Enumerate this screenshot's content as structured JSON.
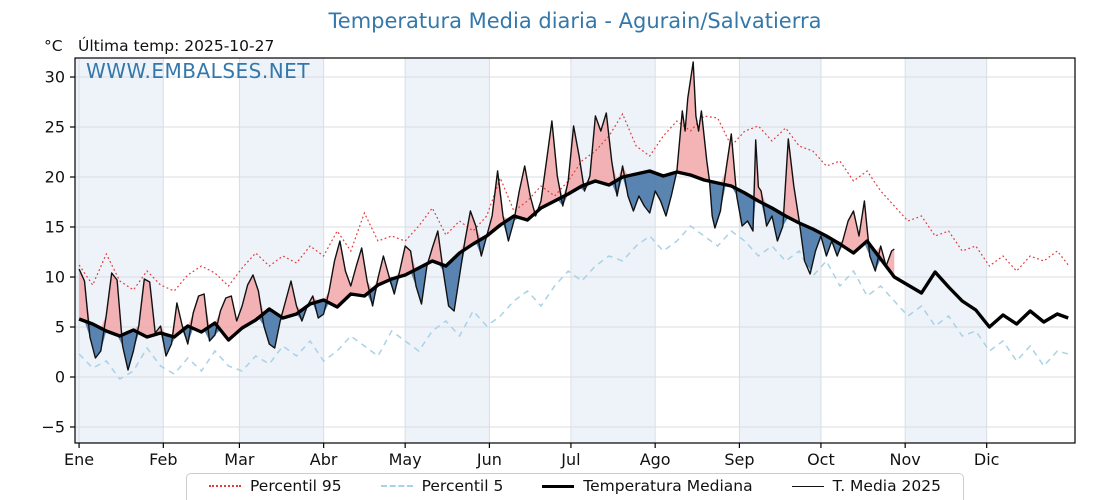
{
  "header": {
    "title": "Temperatura Media diaria - Agurain/Salvatierra",
    "unit_label": "°C",
    "last_temp_label": "Última temp: 2025-10-27",
    "watermark": "WWW.EMBALSES.NET"
  },
  "legend": {
    "items": [
      {
        "label": "Percentil 95"
      },
      {
        "label": "Percentil 5"
      },
      {
        "label": "Temperatura Mediana"
      },
      {
        "label": "T. Media 2025"
      }
    ]
  },
  "colors": {
    "accent_blue": "#3478ab",
    "p95_line": "#e23b3b",
    "p5_line": "#a9d2e6",
    "median_line": "#000000",
    "t2025_line": "#111111",
    "fill_above": "#f2a6a8",
    "fill_below": "#4474a6",
    "band_tint": "#eef2f9",
    "band_white": "#ffffff",
    "grid": "#d9dee4",
    "frame": "#000000",
    "text": "#111111"
  },
  "chart_data": {
    "type": "line",
    "title": "Temperatura Media diaria - Agurain/Salvatierra",
    "xlabel": "",
    "ylabel": "°C",
    "grid": true,
    "legend_position": "bottom",
    "ylim": [
      -6.6,
      31.9
    ],
    "xlim_days": [
      -1.5,
      366.5
    ],
    "yticks": [
      -5,
      0,
      5,
      10,
      15,
      20,
      25,
      30
    ],
    "ytick_labels": [
      "−5",
      "0",
      "5",
      "10",
      "15",
      "20",
      "25",
      "30"
    ],
    "x_tick_labels": [
      "Ene",
      "Feb",
      "Mar",
      "Abr",
      "May",
      "Jun",
      "Jul",
      "Ago",
      "Sep",
      "Oct",
      "Nov",
      "Dic"
    ],
    "month_start_days": [
      0,
      31,
      59,
      90,
      120,
      151,
      181,
      212,
      243,
      273,
      304,
      334
    ],
    "common_days": [
      0,
      5,
      10,
      15,
      20,
      25,
      30,
      35,
      40,
      45,
      50,
      55,
      60,
      65,
      70,
      75,
      80,
      85,
      90,
      95,
      100,
      105,
      110,
      115,
      120,
      125,
      130,
      135,
      140,
      145,
      150,
      155,
      160,
      165,
      170,
      175,
      180,
      185,
      190,
      195,
      200,
      205,
      210,
      215,
      220,
      225,
      230,
      235,
      240,
      245,
      250,
      255,
      260,
      265,
      270,
      275,
      280,
      285,
      290,
      295,
      300,
      305,
      310,
      315,
      320,
      325,
      330,
      335,
      340,
      345,
      350,
      355,
      360,
      364
    ],
    "series": [
      {
        "name": "Percentil 95",
        "role": "p95",
        "days": "common",
        "values": [
          11.2,
          9.2,
          12.3,
          9.6,
          8.7,
          10.6,
          9.2,
          8.6,
          10.2,
          11.1,
          10.4,
          9.1,
          10.9,
          12.4,
          11.1,
          12.1,
          11.4,
          13.1,
          12.1,
          14.6,
          12.6,
          16.4,
          13.6,
          14.1,
          13.6,
          15.1,
          16.9,
          14.2,
          15.6,
          14.6,
          16.1,
          19.9,
          16.6,
          17.6,
          19.1,
          18.1,
          19.6,
          21.6,
          22.6,
          24.1,
          26.3,
          23.1,
          22.1,
          24.1,
          25.6,
          24.6,
          26.1,
          25.9,
          23.1,
          24.6,
          25.1,
          23.6,
          24.9,
          23.1,
          22.6,
          21.1,
          21.6,
          19.6,
          20.6,
          18.6,
          17.1,
          15.6,
          16.1,
          14.1,
          14.6,
          12.6,
          13.1,
          11.1,
          12.1,
          10.6,
          12.1,
          11.6,
          12.6,
          11.2
        ]
      },
      {
        "name": "Percentil 5",
        "role": "p5",
        "days": "common",
        "values": [
          2.3,
          0.9,
          1.6,
          -0.2,
          0.6,
          2.9,
          1.1,
          0.3,
          1.9,
          0.6,
          2.6,
          1.1,
          0.6,
          2.1,
          1.3,
          3.1,
          2.1,
          3.6,
          1.6,
          2.6,
          4.1,
          3.1,
          2.1,
          4.6,
          3.6,
          2.6,
          4.6,
          5.6,
          4.1,
          6.6,
          5.1,
          6.1,
          7.6,
          8.6,
          7.1,
          9.1,
          10.6,
          9.6,
          11.1,
          12.1,
          11.6,
          13.1,
          14.1,
          12.6,
          13.6,
          15.1,
          14.1,
          13.1,
          14.6,
          13.6,
          12.1,
          13.1,
          11.6,
          12.6,
          10.1,
          11.6,
          9.1,
          10.6,
          8.1,
          9.1,
          7.6,
          6.1,
          7.1,
          5.1,
          6.1,
          4.1,
          4.6,
          2.6,
          3.6,
          1.6,
          3.1,
          1.1,
          2.6,
          2.3
        ]
      },
      {
        "name": "Temperatura Mediana",
        "role": "median",
        "days": "common",
        "values": [
          5.8,
          5.3,
          4.6,
          4.1,
          4.7,
          4.0,
          4.4,
          4.0,
          5.1,
          4.5,
          5.4,
          3.7,
          4.9,
          5.7,
          6.8,
          5.9,
          6.3,
          7.3,
          7.7,
          7.0,
          8.3,
          8.1,
          9.2,
          9.8,
          10.2,
          10.9,
          11.6,
          11.1,
          12.4,
          13.3,
          14.1,
          15.2,
          16.1,
          15.7,
          16.9,
          17.6,
          18.3,
          19.1,
          19.6,
          19.2,
          20.0,
          20.3,
          20.6,
          20.1,
          20.5,
          20.2,
          19.7,
          19.4,
          19.1,
          18.4,
          17.6,
          16.9,
          16.1,
          15.4,
          14.8,
          14.1,
          13.3,
          12.4,
          13.6,
          11.8,
          10.0,
          9.2,
          8.4,
          10.5,
          9.0,
          7.6,
          6.7,
          5.0,
          6.2,
          5.3,
          6.6,
          5.5,
          6.3,
          5.9
        ]
      },
      {
        "name": "T. Media 2025",
        "role": "t2025",
        "days": [
          0,
          2,
          4,
          6,
          8,
          10,
          12,
          14,
          16,
          18,
          20,
          22,
          24,
          26,
          28,
          30,
          32,
          34,
          36,
          38,
          40,
          42,
          44,
          46,
          48,
          50,
          52,
          54,
          56,
          58,
          60,
          62,
          64,
          66,
          68,
          70,
          72,
          74,
          76,
          78,
          80,
          82,
          84,
          86,
          88,
          90,
          92,
          94,
          96,
          98,
          100,
          102,
          104,
          106,
          108,
          110,
          112,
          114,
          116,
          118,
          120,
          122,
          124,
          126,
          128,
          130,
          132,
          134,
          136,
          138,
          140,
          142,
          144,
          146,
          148,
          150,
          152,
          154,
          156,
          158,
          160,
          162,
          164,
          166,
          168,
          170,
          172,
          174,
          176,
          178,
          180,
          182,
          184,
          186,
          188,
          190,
          192,
          194,
          196,
          198,
          200,
          202,
          204,
          206,
          208,
          210,
          212,
          214,
          216,
          218,
          220,
          221,
          222,
          223,
          224,
          226,
          227,
          228,
          229,
          230,
          231,
          232,
          233,
          234,
          236,
          238,
          240,
          242,
          244,
          246,
          248,
          249,
          250,
          251,
          253,
          255,
          257,
          259,
          261,
          263,
          265,
          267,
          269,
          271,
          273,
          275,
          277,
          279,
          281,
          283,
          285,
          287,
          289,
          291,
          293,
          295,
          297,
          299,
          300
        ],
        "values": [
          10.8,
          9.6,
          4.0,
          1.9,
          2.6,
          6.2,
          10.4,
          9.7,
          3.1,
          0.7,
          2.6,
          5.2,
          9.8,
          9.5,
          4.4,
          5.1,
          2.1,
          3.3,
          7.4,
          5.1,
          3.3,
          6.4,
          8.1,
          8.3,
          3.6,
          4.2,
          6.6,
          7.9,
          8.1,
          5.6,
          7.1,
          9.2,
          10.2,
          8.6,
          5.1,
          3.3,
          2.9,
          5.6,
          7.6,
          9.6,
          7.1,
          5.6,
          7.1,
          8.1,
          5.9,
          6.3,
          8.6,
          11.6,
          13.6,
          10.6,
          9.1,
          11.1,
          12.9,
          9.6,
          7.1,
          9.9,
          12.1,
          10.1,
          8.3,
          10.6,
          13.1,
          12.6,
          9.1,
          7.3,
          11.1,
          12.9,
          14.6,
          10.6,
          7.1,
          6.6,
          10.1,
          13.6,
          16.6,
          15.1,
          12.1,
          14.1,
          16.1,
          20.6,
          16.1,
          13.6,
          15.6,
          18.6,
          21.1,
          18.1,
          16.1,
          17.6,
          21.6,
          25.6,
          20.1,
          17.1,
          19.6,
          25.1,
          22.1,
          18.6,
          20.1,
          26.1,
          24.6,
          26.4,
          21.6,
          18.1,
          21.1,
          18.1,
          16.6,
          18.1,
          17.1,
          16.4,
          18.6,
          17.6,
          16.1,
          18.2,
          20.6,
          23.6,
          26.6,
          24.6,
          27.9,
          31.5,
          26.1,
          24.6,
          26.6,
          24.1,
          21.6,
          19.6,
          16.1,
          14.9,
          16.6,
          20.6,
          24.3,
          18.1,
          15.1,
          15.6,
          14.6,
          23.7,
          19.0,
          18.6,
          15.1,
          16.1,
          13.6,
          15.1,
          23.8,
          19.1,
          15.6,
          11.6,
          10.3,
          12.6,
          14.1,
          12.1,
          13.6,
          12.1,
          13.6,
          15.6,
          16.6,
          14.1,
          17.6,
          12.1,
          10.6,
          13.1,
          11.1,
          12.6,
          12.8
        ]
      }
    ],
    "fills": {
      "above_median": "red where T. Media 2025 > Temperatura Mediana",
      "below_median": "blue where T. Media 2025 < Temperatura Mediana",
      "data_ends_day": 300
    }
  }
}
